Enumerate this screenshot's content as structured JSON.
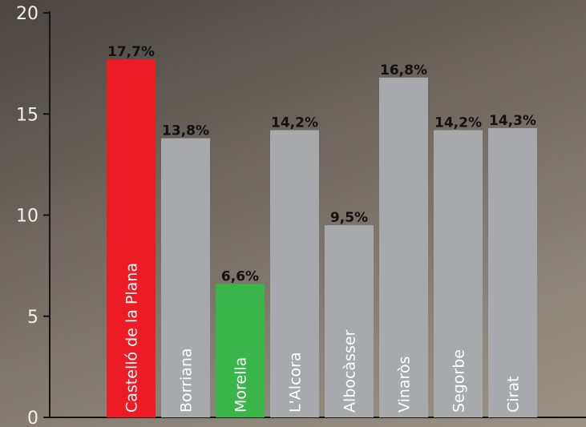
{
  "chart_data": {
    "type": "bar",
    "categories": [
      "Castelló de la Plana",
      "Borriana",
      "Morella",
      "L'Alcora",
      "Albocàsser",
      "Vinaròs",
      "Segorbe",
      "Cirat"
    ],
    "values": [
      17.7,
      13.8,
      6.6,
      14.2,
      9.5,
      16.8,
      14.2,
      14.3
    ],
    "value_labels": [
      "17,7%",
      "13,8%",
      "6,6%",
      "14,2%",
      "9,5%",
      "16,8%",
      "14,2%",
      "14,3%"
    ],
    "colors": [
      "#ed1c24",
      "#a7a9ac",
      "#39b54a",
      "#a7a9ac",
      "#a7a9ac",
      "#a7a9ac",
      "#a7a9ac",
      "#a7a9ac"
    ],
    "ylim": [
      0,
      20
    ],
    "yticks": [
      0,
      5,
      10,
      15,
      20
    ],
    "ytick_labels": [
      "0",
      "5",
      "10",
      "15",
      "20"
    ],
    "grid": false
  }
}
